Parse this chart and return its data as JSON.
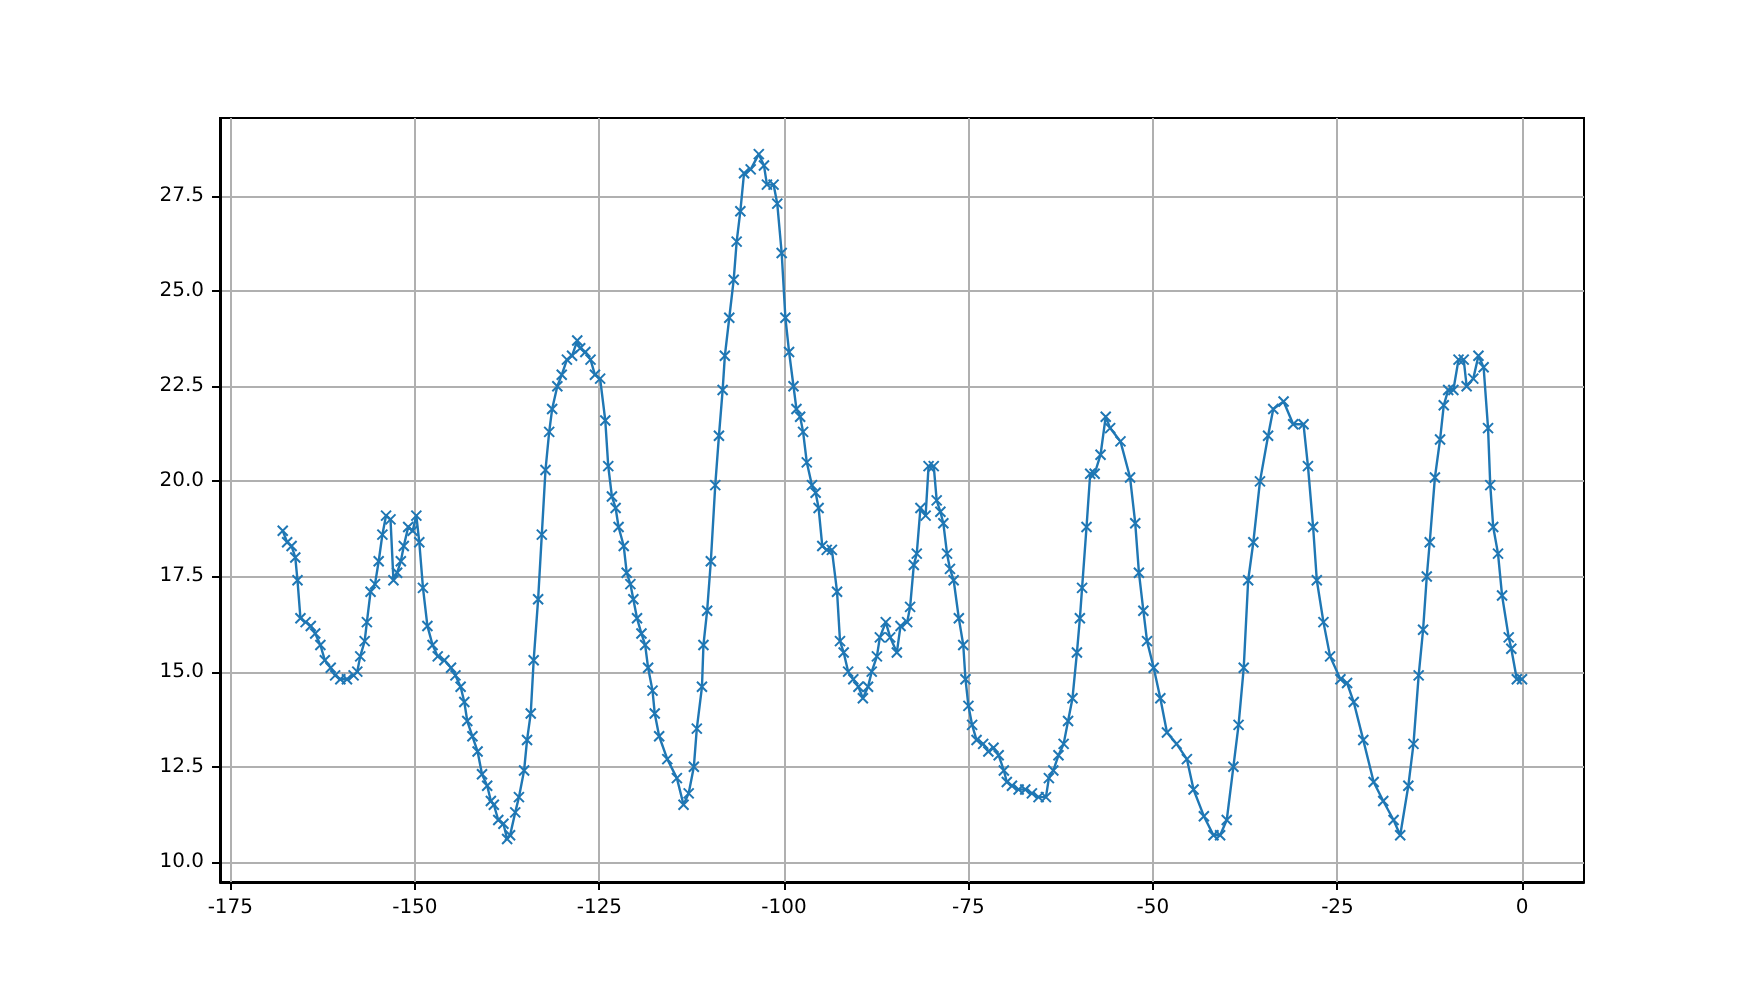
{
  "chart_data": {
    "type": "line",
    "marker": "cross",
    "line_style": "solid",
    "grid": true,
    "xlim": [
      -176.4,
      8.4
    ],
    "ylim": [
      9.47,
      29.55
    ],
    "xticks": [
      -175,
      -150,
      -125,
      -100,
      -75,
      -50,
      -25,
      0
    ],
    "yticks": [
      {
        "value": 10,
        "label": "10.0"
      },
      {
        "value": 12.5,
        "label": "12.5"
      },
      {
        "value": 15,
        "label": "15.0"
      },
      {
        "value": 17.5,
        "label": "17.5"
      },
      {
        "value": 20,
        "label": "20.0"
      },
      {
        "value": 22.5,
        "label": "22.5"
      },
      {
        "value": 25,
        "label": "25.0"
      },
      {
        "value": 27.5,
        "label": "27.5"
      }
    ],
    "series": [
      {
        "color": "#1f77b4",
        "x": [
          -167.9,
          -167.3,
          -166.7,
          -166.2,
          -165.9,
          -165.5,
          -164.8,
          -164.1,
          -163.5,
          -162.8,
          -162.2,
          -161.4,
          -160.8,
          -160.1,
          -159.2,
          -158.3,
          -157.8,
          -157.4,
          -156.8,
          -156.5,
          -156.0,
          -155.4,
          -154.9,
          -154.4,
          -153.9,
          -153.3,
          -152.9,
          -152.4,
          -151.9,
          -151.5,
          -150.9,
          -150.3,
          -149.8,
          -149.4,
          -148.9,
          -148.3,
          -147.6,
          -146.9,
          -146.0,
          -145.1,
          -144.5,
          -143.8,
          -143.3,
          -142.9,
          -142.2,
          -141.5,
          -140.9,
          -140.2,
          -139.7,
          -139.3,
          -138.7,
          -138.0,
          -137.5,
          -137.1,
          -136.4,
          -135.9,
          -135.2,
          -134.8,
          -134.3,
          -133.9,
          -133.3,
          -132.8,
          -132.3,
          -131.8,
          -131.4,
          -130.7,
          -130.1,
          -129.4,
          -128.7,
          -128.0,
          -127.6,
          -126.9,
          -126.2,
          -125.6,
          -124.9,
          -124.2,
          -123.8,
          -123.3,
          -122.8,
          -122.4,
          -121.7,
          -121.3,
          -120.8,
          -120.4,
          -119.9,
          -119.3,
          -118.8,
          -118.4,
          -117.8,
          -117.5,
          -116.9,
          -115.8,
          -114.5,
          -113.6,
          -112.9,
          -112.2,
          -111.8,
          -111.1,
          -110.9,
          -110.4,
          -109.9,
          -109.3,
          -108.8,
          -108.3,
          -108.0,
          -107.4,
          -106.8,
          -106.4,
          -105.9,
          -105.4,
          -104.5,
          -103.4,
          -102.7,
          -102.3,
          -101.4,
          -100.9,
          -100.3,
          -99.8,
          -99.3,
          -98.7,
          -98.3,
          -97.8,
          -97.4,
          -96.9,
          -96.2,
          -95.7,
          -95.3,
          -94.8,
          -94.2,
          -93.5,
          -92.8,
          -92.4,
          -91.9,
          -91.3,
          -90.6,
          -89.9,
          -89.3,
          -88.6,
          -88.1,
          -87.4,
          -87.0,
          -86.2,
          -85.6,
          -84.7,
          -84.2,
          -83.3,
          -82.9,
          -82.4,
          -82.0,
          -81.5,
          -80.8,
          -80.4,
          -79.7,
          -79.3,
          -78.8,
          -78.4,
          -77.9,
          -77.5,
          -77.0,
          -76.3,
          -75.7,
          -75.4,
          -75.0,
          -74.5,
          -73.9,
          -73.0,
          -72.3,
          -71.6,
          -70.9,
          -70.2,
          -69.8,
          -69.1,
          -68.2,
          -67.3,
          -66.4,
          -65.5,
          -64.5,
          -64.1,
          -63.5,
          -62.8,
          -62.1,
          -61.5,
          -60.9,
          -60.3,
          -59.9,
          -59.6,
          -59.0,
          -58.5,
          -57.9,
          -57.1,
          -56.4,
          -55.8,
          -54.4,
          -53.1,
          -52.4,
          -51.9,
          -51.3,
          -50.8,
          -49.9,
          -49.0,
          -48.1,
          -46.8,
          -45.4,
          -44.5,
          -43.1,
          -41.8,
          -40.9,
          -40.0,
          -39.1,
          -38.4,
          -37.7,
          -37.1,
          -36.4,
          -35.5,
          -34.4,
          -33.7,
          -32.3,
          -31.0,
          -29.6,
          -29.0,
          -28.3,
          -27.8,
          -26.9,
          -26.0,
          -24.6,
          -23.7,
          -22.8,
          -21.5,
          -20.1,
          -18.8,
          -17.4,
          -16.5,
          -15.4,
          -14.7,
          -14.0,
          -13.4,
          -12.9,
          -12.5,
          -11.8,
          -11.1,
          -10.6,
          -10.0,
          -9.3,
          -8.6,
          -7.9,
          -7.5,
          -6.6,
          -5.9,
          -5.2,
          -4.6,
          -4.3,
          -3.9,
          -3.25,
          -2.7,
          -1.8,
          -1.45,
          -0.7,
          0
        ],
        "values": [
          18.7,
          18.4,
          18.3,
          18.0,
          17.4,
          16.4,
          16.3,
          16.2,
          16.0,
          15.7,
          15.3,
          15.1,
          14.9,
          14.8,
          14.8,
          14.9,
          15.0,
          15.4,
          15.8,
          16.3,
          17.1,
          17.3,
          17.9,
          18.6,
          19.1,
          19.0,
          17.4,
          17.6,
          17.9,
          18.3,
          18.8,
          18.7,
          19.1,
          18.4,
          17.2,
          16.2,
          15.7,
          15.4,
          15.3,
          15.1,
          14.9,
          14.6,
          14.2,
          13.7,
          13.3,
          12.9,
          12.3,
          12.0,
          11.6,
          11.5,
          11.1,
          11.0,
          10.6,
          10.7,
          11.3,
          11.7,
          12.4,
          13.2,
          13.9,
          15.3,
          16.9,
          18.6,
          20.3,
          21.3,
          21.9,
          22.5,
          22.8,
          23.2,
          23.3,
          23.7,
          23.5,
          23.4,
          23.2,
          22.8,
          22.7,
          21.6,
          20.4,
          19.6,
          19.3,
          18.8,
          18.3,
          17.6,
          17.3,
          16.9,
          16.4,
          16.0,
          15.7,
          15.1,
          14.5,
          13.9,
          13.3,
          12.7,
          12.2,
          11.5,
          11.8,
          12.5,
          13.5,
          14.6,
          15.7,
          16.6,
          17.9,
          19.9,
          21.2,
          22.4,
          23.3,
          24.3,
          25.3,
          26.3,
          27.1,
          28.1,
          28.2,
          28.6,
          28.3,
          27.8,
          27.8,
          27.3,
          26.0,
          24.3,
          23.4,
          22.5,
          21.9,
          21.7,
          21.3,
          20.5,
          19.9,
          19.7,
          19.3,
          18.3,
          18.2,
          18.2,
          17.1,
          15.8,
          15.5,
          15.0,
          14.8,
          14.6,
          14.3,
          14.6,
          15.0,
          15.4,
          15.9,
          16.3,
          15.9,
          15.5,
          16.2,
          16.3,
          16.7,
          17.8,
          18.1,
          19.3,
          19.1,
          20.4,
          20.4,
          19.5,
          19.2,
          18.9,
          18.1,
          17.7,
          17.4,
          16.4,
          15.7,
          14.8,
          14.1,
          13.6,
          13.2,
          13.1,
          12.9,
          13.0,
          12.8,
          12.4,
          12.1,
          12.0,
          11.9,
          11.9,
          11.8,
          11.7,
          11.7,
          12.2,
          12.4,
          12.8,
          13.1,
          13.7,
          14.3,
          15.5,
          16.4,
          17.2,
          18.8,
          20.2,
          20.2,
          20.7,
          21.7,
          21.4,
          21.05,
          20.1,
          18.9,
          17.6,
          16.6,
          15.8,
          15.1,
          14.3,
          13.4,
          13.1,
          12.7,
          11.9,
          11.2,
          10.7,
          10.7,
          11.1,
          12.5,
          13.6,
          15.1,
          17.4,
          18.4,
          20.0,
          21.2,
          21.9,
          22.1,
          21.5,
          21.5,
          20.4,
          18.8,
          17.4,
          16.3,
          15.4,
          14.8,
          14.7,
          14.2,
          13.2,
          12.1,
          11.6,
          11.1,
          10.7,
          12.0,
          13.1,
          14.9,
          16.1,
          17.5,
          18.4,
          20.1,
          21.1,
          22.0,
          22.4,
          22.4,
          23.2,
          23.2,
          22.5,
          22.7,
          23.3,
          23.0,
          21.4,
          19.9,
          18.8,
          18.1,
          17.0,
          15.9,
          15.6,
          14.8,
          14.8
        ]
      }
    ]
  }
}
